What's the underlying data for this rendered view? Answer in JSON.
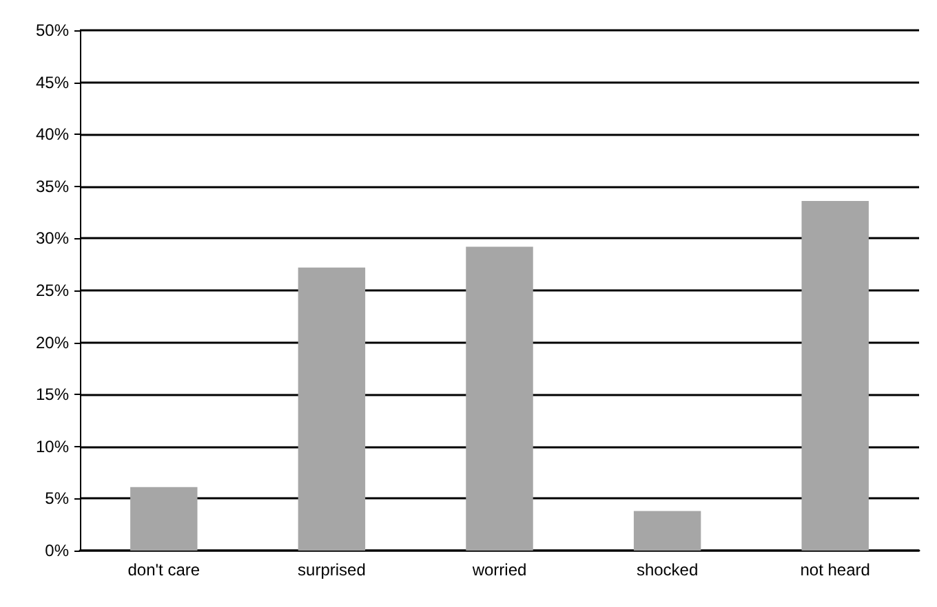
{
  "chart_data": {
    "type": "bar",
    "categories": [
      "don't care",
      "surprised",
      "worried",
      "shocked",
      "not heard"
    ],
    "values": [
      6.1,
      27.2,
      29.2,
      3.8,
      33.6
    ],
    "color": "#a6a6a6",
    "ylim": [
      0,
      50
    ],
    "yticks": [
      {
        "value": 0,
        "label": "0%"
      },
      {
        "value": 5,
        "label": "5%"
      },
      {
        "value": 10,
        "label": "10%"
      },
      {
        "value": 15,
        "label": "15%"
      },
      {
        "value": 20,
        "label": "20%"
      },
      {
        "value": 25,
        "label": "25%"
      },
      {
        "value": 30,
        "label": "30%"
      },
      {
        "value": 35,
        "label": "35%"
      },
      {
        "value": 40,
        "label": "40%"
      },
      {
        "value": 45,
        "label": "45%"
      },
      {
        "value": 50,
        "label": "50%"
      }
    ],
    "grid": true
  }
}
